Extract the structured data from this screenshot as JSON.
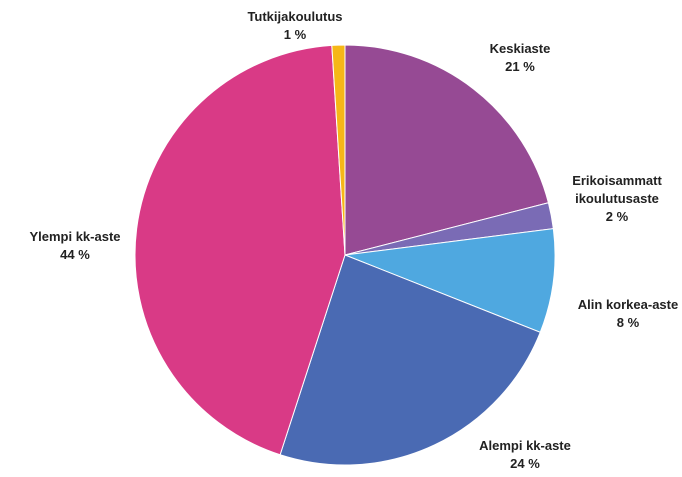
{
  "chart_data": {
    "type": "pie",
    "categories": [
      "Keskiaste",
      "Erikoisammatt ikoulutusaste",
      "Alin korkea-aste",
      "Alempi kk-aste",
      "Ylempi kk-aste",
      "Tutkijakoulutus"
    ],
    "values": [
      21,
      2,
      8,
      24,
      44,
      1
    ],
    "value_labels": [
      "21 %",
      "2 %",
      "8 %",
      "24 %",
      "44 %",
      "1 %"
    ],
    "colors": [
      "#964a94",
      "#7a6bb5",
      "#4fa8e0",
      "#4a6ab3",
      "#d93a86",
      "#f6b717"
    ]
  }
}
